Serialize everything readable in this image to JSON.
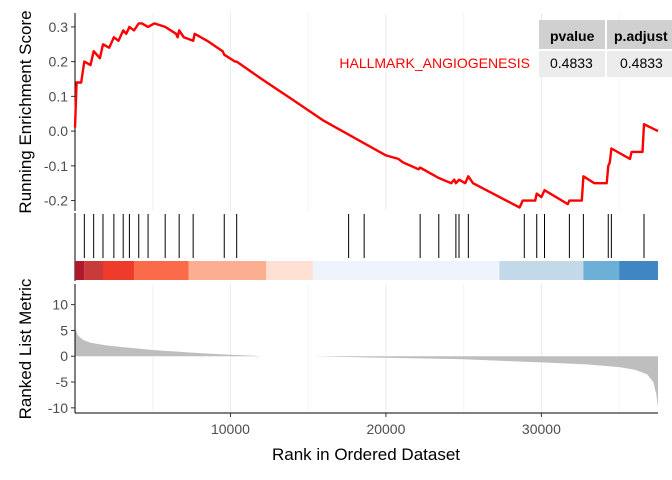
{
  "chart_data": [
    {
      "type": "line",
      "panel": "running-enrichment-score",
      "ylabel": "Running Enrichment Score",
      "ylim": [
        -0.23,
        0.34
      ],
      "xlim": [
        0,
        37500
      ],
      "yticks": [
        -0.2,
        -0.1,
        0.0,
        0.1,
        0.2,
        0.3
      ],
      "ytick_labels": [
        "-0.2",
        "-0.1",
        "0.0",
        "0.1",
        "0.2",
        "0.3"
      ],
      "grid": true,
      "series": [
        {
          "name": "HALLMARK_ANGIOGENESIS",
          "color": "#ff0000",
          "x": [
            0,
            100,
            400,
            600,
            1000,
            1200,
            1600,
            1800,
            2200,
            2500,
            2800,
            3100,
            3300,
            3500,
            3800,
            4100,
            4300,
            4700,
            5100,
            5800,
            6500,
            6600,
            6700,
            7000,
            7600,
            7700,
            8500,
            9500,
            9600,
            10300,
            10400,
            12000,
            14000,
            16000,
            18000,
            20000,
            20800,
            21100,
            22100,
            22200,
            23200,
            23400,
            24200,
            24400,
            24500,
            24700,
            25100,
            25300,
            25600,
            28600,
            28800,
            29600,
            29700,
            30000,
            30200,
            31700,
            31800,
            32600,
            32700,
            33400,
            34200,
            34300,
            34400,
            34500,
            35700,
            35800,
            36500,
            36600,
            37500
          ],
          "y": [
            0.01,
            0.14,
            0.14,
            0.2,
            0.19,
            0.23,
            0.21,
            0.25,
            0.24,
            0.27,
            0.26,
            0.29,
            0.28,
            0.3,
            0.29,
            0.31,
            0.31,
            0.3,
            0.31,
            0.3,
            0.28,
            0.27,
            0.29,
            0.27,
            0.26,
            0.28,
            0.26,
            0.23,
            0.22,
            0.2,
            0.2,
            0.15,
            0.09,
            0.03,
            -0.02,
            -0.07,
            -0.08,
            -0.09,
            -0.11,
            -0.105,
            -0.13,
            -0.135,
            -0.15,
            -0.14,
            -0.15,
            -0.14,
            -0.15,
            -0.13,
            -0.15,
            -0.22,
            -0.2,
            -0.2,
            -0.18,
            -0.19,
            -0.17,
            -0.21,
            -0.2,
            -0.2,
            -0.13,
            -0.15,
            -0.15,
            -0.1,
            -0.09,
            -0.05,
            -0.08,
            -0.06,
            -0.06,
            0.02,
            0.0
          ]
        }
      ],
      "series_label": "HALLMARK_ANGIOGENESIS",
      "table": {
        "headers": [
          "pvalue",
          "p.adjust"
        ],
        "values": [
          "0.4833",
          "0.4833"
        ]
      }
    },
    {
      "type": "rug",
      "panel": "gene-hits",
      "hits": [
        600,
        1200,
        1800,
        2500,
        3100,
        3500,
        4100,
        4700,
        5800,
        6700,
        7600,
        9600,
        10400,
        17600,
        18600,
        22200,
        23400,
        24500,
        24700,
        25300,
        28900,
        29700,
        30200,
        31800,
        32700,
        34300,
        34500,
        36600
      ]
    },
    {
      "type": "heatmap",
      "panel": "rank-color-bar",
      "segments": [
        {
          "start": 0,
          "end": 600,
          "color": "#b2182b"
        },
        {
          "start": 600,
          "end": 1800,
          "color": "#c93a3b"
        },
        {
          "start": 1800,
          "end": 3800,
          "color": "#ef3b2c"
        },
        {
          "start": 3800,
          "end": 7300,
          "color": "#fb6a4a"
        },
        {
          "start": 7300,
          "end": 12300,
          "color": "#fcae91"
        },
        {
          "start": 12300,
          "end": 15300,
          "color": "#fee0d2"
        },
        {
          "start": 15300,
          "end": 27300,
          "color": "#eff3fb"
        },
        {
          "start": 27300,
          "end": 32700,
          "color": "#c3d8e8"
        },
        {
          "start": 32700,
          "end": 35000,
          "color": "#6baed6"
        },
        {
          "start": 35000,
          "end": 37500,
          "color": "#3f86c3"
        }
      ]
    },
    {
      "type": "area",
      "panel": "ranked-list-metric",
      "xlabel": "Rank in Ordered Dataset",
      "ylabel": "Ranked List Metric",
      "xlim": [
        0,
        37500
      ],
      "ylim": [
        -11,
        14
      ],
      "xticks": [
        10000,
        20000,
        30000
      ],
      "xtick_labels": [
        "10000",
        "20000",
        "30000"
      ],
      "yticks": [
        -10,
        -5,
        0,
        5,
        10
      ],
      "ytick_labels": [
        "-10",
        "-5",
        "0",
        "5",
        "10"
      ],
      "grid": true,
      "color": "#bebebe",
      "x": [
        0,
        50,
        200,
        500,
        1000,
        2000,
        3000,
        5000,
        8000,
        10000,
        11500,
        12000,
        15300,
        20000,
        25000,
        30000,
        33000,
        35000,
        36000,
        36800,
        37200,
        37400,
        37500
      ],
      "y": [
        6,
        5,
        4,
        3.2,
        2.6,
        2.1,
        1.8,
        1.2,
        0.6,
        0.3,
        0.1,
        0,
        0,
        -0.3,
        -0.6,
        -1.2,
        -1.6,
        -2.1,
        -2.6,
        -3.5,
        -5,
        -7.5,
        -10
      ]
    }
  ]
}
